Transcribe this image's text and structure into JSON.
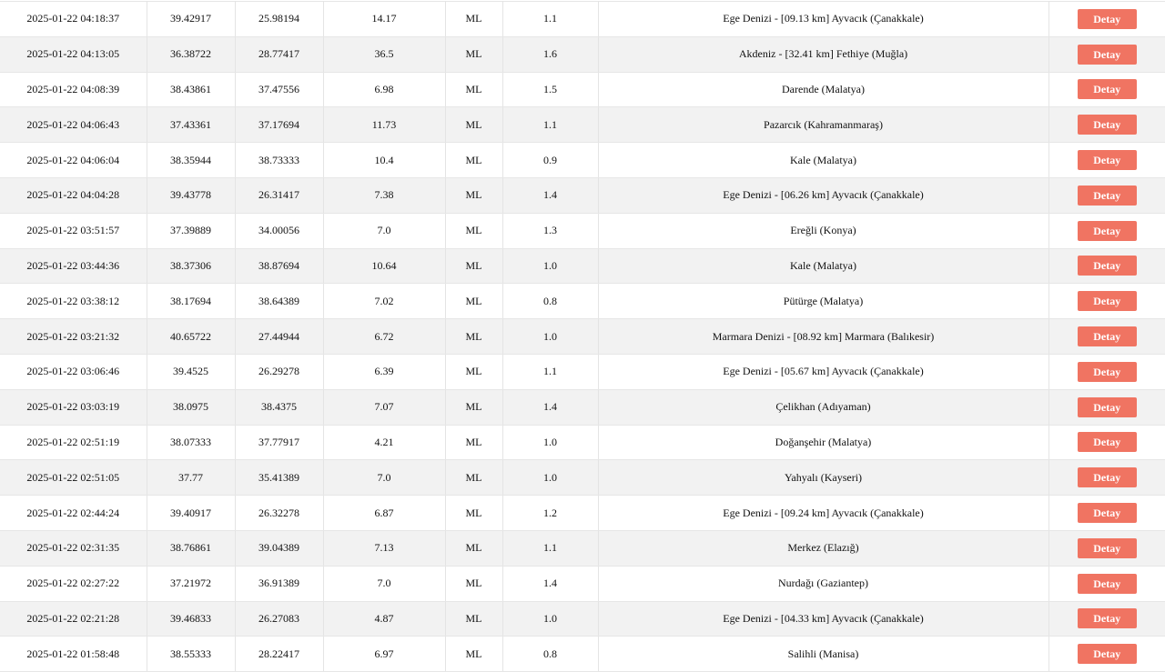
{
  "button_label": "Detay",
  "accent_color": "#f07462",
  "rows": [
    [
      "2025-01-22 04:18:37",
      "39.42917",
      "25.98194",
      "14.17",
      "ML",
      "1.1",
      "Ege Denizi - [09.13 km] Ayvacık (Çanakkale)"
    ],
    [
      "2025-01-22 04:13:05",
      "36.38722",
      "28.77417",
      "36.5",
      "ML",
      "1.6",
      "Akdeniz - [32.41 km] Fethiye (Muğla)"
    ],
    [
      "2025-01-22 04:08:39",
      "38.43861",
      "37.47556",
      "6.98",
      "ML",
      "1.5",
      "Darende (Malatya)"
    ],
    [
      "2025-01-22 04:06:43",
      "37.43361",
      "37.17694",
      "11.73",
      "ML",
      "1.1",
      "Pazarcık (Kahramanmaraş)"
    ],
    [
      "2025-01-22 04:06:04",
      "38.35944",
      "38.73333",
      "10.4",
      "ML",
      "0.9",
      "Kale (Malatya)"
    ],
    [
      "2025-01-22 04:04:28",
      "39.43778",
      "26.31417",
      "7.38",
      "ML",
      "1.4",
      "Ege Denizi - [06.26 km] Ayvacık (Çanakkale)"
    ],
    [
      "2025-01-22 03:51:57",
      "37.39889",
      "34.00056",
      "7.0",
      "ML",
      "1.3",
      "Ereğli (Konya)"
    ],
    [
      "2025-01-22 03:44:36",
      "38.37306",
      "38.87694",
      "10.64",
      "ML",
      "1.0",
      "Kale (Malatya)"
    ],
    [
      "2025-01-22 03:38:12",
      "38.17694",
      "38.64389",
      "7.02",
      "ML",
      "0.8",
      "Pütürge (Malatya)"
    ],
    [
      "2025-01-22 03:21:32",
      "40.65722",
      "27.44944",
      "6.72",
      "ML",
      "1.0",
      "Marmara Denizi - [08.92 km] Marmara (Balıkesir)"
    ],
    [
      "2025-01-22 03:06:46",
      "39.4525",
      "26.29278",
      "6.39",
      "ML",
      "1.1",
      "Ege Denizi - [05.67 km] Ayvacık (Çanakkale)"
    ],
    [
      "2025-01-22 03:03:19",
      "38.0975",
      "38.4375",
      "7.07",
      "ML",
      "1.4",
      "Çelikhan (Adıyaman)"
    ],
    [
      "2025-01-22 02:51:19",
      "38.07333",
      "37.77917",
      "4.21",
      "ML",
      "1.0",
      "Doğanşehir (Malatya)"
    ],
    [
      "2025-01-22 02:51:05",
      "37.77",
      "35.41389",
      "7.0",
      "ML",
      "1.0",
      "Yahyalı (Kayseri)"
    ],
    [
      "2025-01-22 02:44:24",
      "39.40917",
      "26.32278",
      "6.87",
      "ML",
      "1.2",
      "Ege Denizi - [09.24 km] Ayvacık (Çanakkale)"
    ],
    [
      "2025-01-22 02:31:35",
      "38.76861",
      "39.04389",
      "7.13",
      "ML",
      "1.1",
      "Merkez (Elazığ)"
    ],
    [
      "2025-01-22 02:27:22",
      "37.21972",
      "36.91389",
      "7.0",
      "ML",
      "1.4",
      "Nurdağı (Gaziantep)"
    ],
    [
      "2025-01-22 02:21:28",
      "39.46833",
      "26.27083",
      "4.87",
      "ML",
      "1.0",
      "Ege Denizi - [04.33 km] Ayvacık (Çanakkale)"
    ],
    [
      "2025-01-22 01:58:48",
      "38.55333",
      "28.22417",
      "6.97",
      "ML",
      "0.8",
      "Salihli (Manisa)"
    ]
  ]
}
